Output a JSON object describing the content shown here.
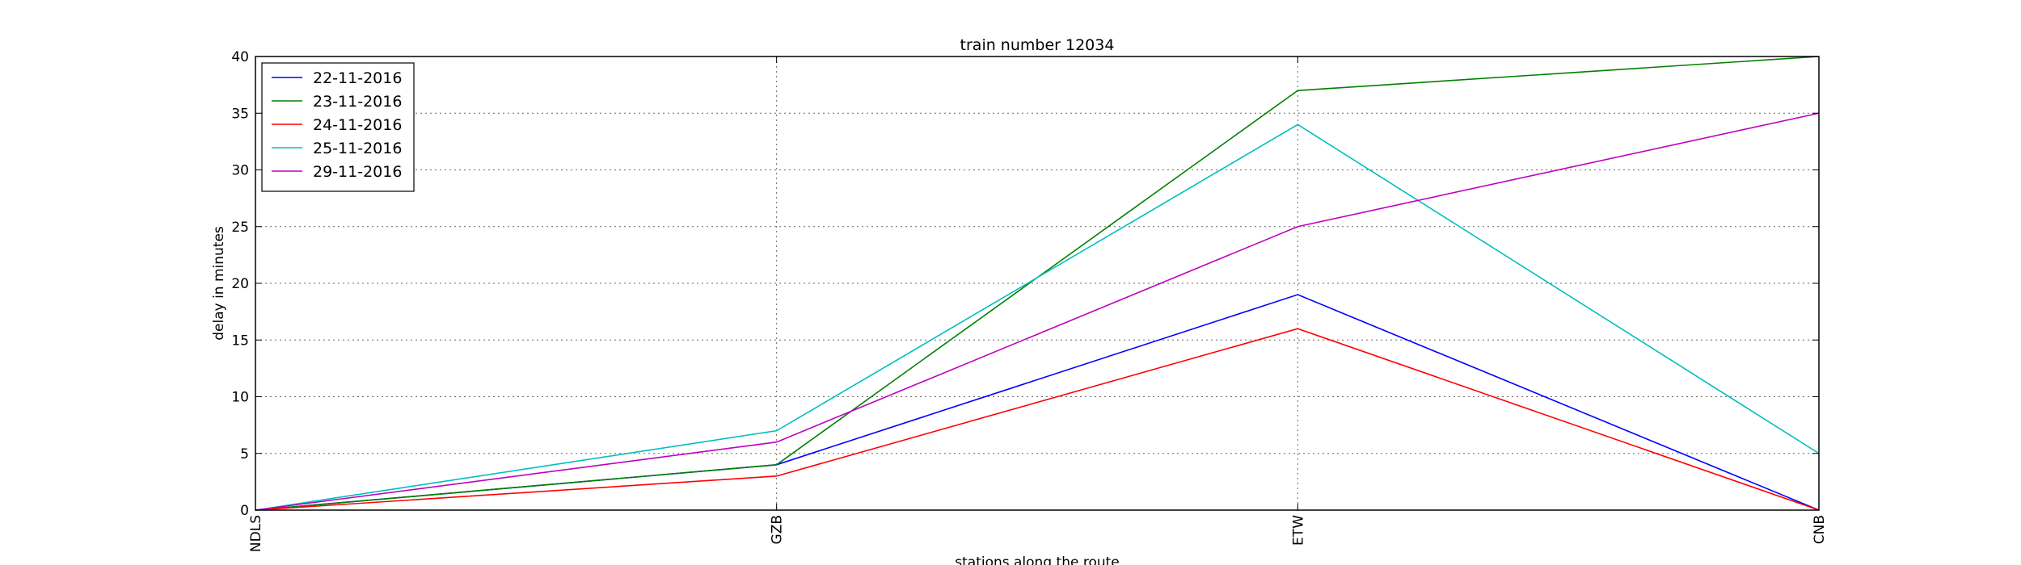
{
  "chart_data": {
    "type": "line",
    "title": "train number 12034",
    "xlabel": "stations along the route",
    "ylabel": "delay in minutes",
    "categories": [
      "NDLS",
      "GZB",
      "ETW",
      "CNB"
    ],
    "ylim": [
      0,
      40
    ],
    "yticks": [
      0,
      5,
      10,
      15,
      20,
      25,
      30,
      35,
      40
    ],
    "grid": true,
    "legend_position": "top-left",
    "series": [
      {
        "name": "22-11-2016",
        "color": "#0000ff",
        "values": [
          0,
          4,
          19,
          0
        ]
      },
      {
        "name": "23-11-2016",
        "color": "#008000",
        "values": [
          0,
          4,
          37,
          40
        ]
      },
      {
        "name": "24-11-2016",
        "color": "#ff0000",
        "values": [
          0,
          3,
          16,
          0
        ]
      },
      {
        "name": "25-11-2016",
        "color": "#00bfbf",
        "values": [
          0,
          7,
          34,
          5
        ]
      },
      {
        "name": "29-11-2016",
        "color": "#bf00bf",
        "values": [
          0,
          6,
          25,
          35
        ]
      }
    ]
  }
}
